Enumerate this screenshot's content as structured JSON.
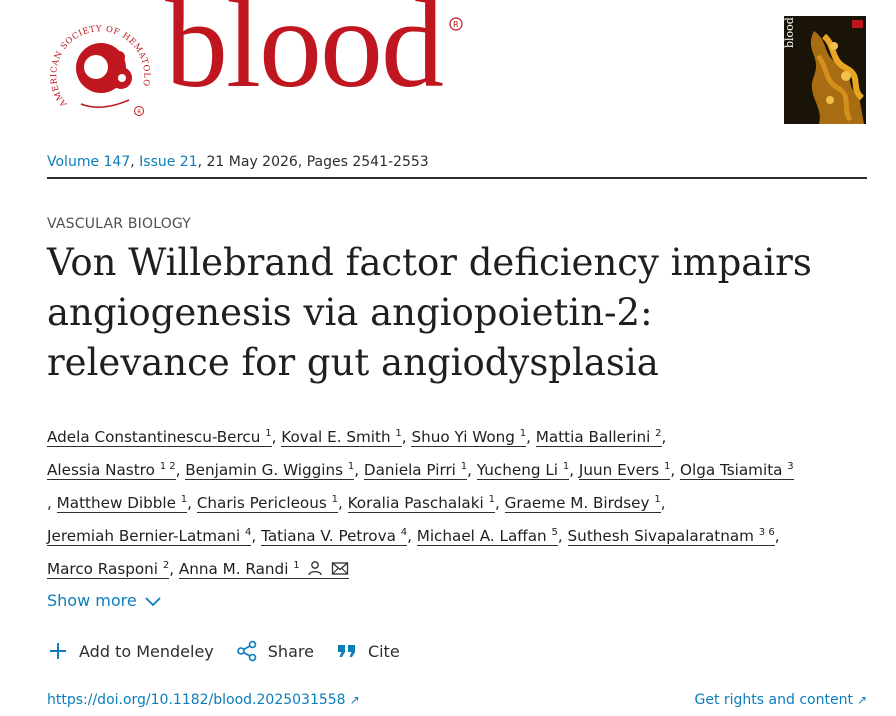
{
  "brand": {
    "journal_name": "blood",
    "seal_text": "AMERICAN SOCIETY OF HEMATOLOGY",
    "cover_text": "blood",
    "brand_color": "#c0161f",
    "link_color": "#0c7dbb"
  },
  "issue": {
    "volume": "Volume 147",
    "issue": "Issue 21",
    "date_pages": ", 21 May 2026, Pages 2541-2553"
  },
  "article": {
    "section": "VASCULAR BIOLOGY",
    "title": "Von Willebrand factor deficiency impairs angiogenesis via angiopoietin-2: relevance for gut angiodysplasia"
  },
  "authors": [
    {
      "name": "Adela Constantinescu-Bercu",
      "aff": "1"
    },
    {
      "name": "Koval E. Smith",
      "aff": "1"
    },
    {
      "name": "Shuo Yi Wong",
      "aff": "1"
    },
    {
      "name": "Mattia Ballerini",
      "aff": "2"
    },
    {
      "name": "Alessia Nastro",
      "aff": "1 2"
    },
    {
      "name": "Benjamin G. Wiggins",
      "aff": "1"
    },
    {
      "name": "Daniela Pirri",
      "aff": "1"
    },
    {
      "name": "Yucheng Li",
      "aff": "1"
    },
    {
      "name": "Juun Evers",
      "aff": "1"
    },
    {
      "name": "Olga Tsiamita",
      "aff": "3"
    },
    {
      "name": "Matthew Dibble",
      "aff": "1"
    },
    {
      "name": "Charis Pericleous",
      "aff": "1"
    },
    {
      "name": "Koralia Paschalaki",
      "aff": "1"
    },
    {
      "name": "Graeme M. Birdsey",
      "aff": "1"
    },
    {
      "name": "Jeremiah Bernier-Latmani",
      "aff": "4"
    },
    {
      "name": "Tatiana V. Petrova",
      "aff": "4"
    },
    {
      "name": "Michael A. Laffan",
      "aff": "5"
    },
    {
      "name": "Suthesh Sivapalaratnam",
      "aff": "3 6"
    },
    {
      "name": "Marco Rasponi",
      "aff": "2"
    },
    {
      "name": "Anna M. Randi",
      "aff": "1"
    }
  ],
  "corresponding_icons": [
    "person-icon",
    "envelope-icon"
  ],
  "show_more": {
    "label": "Show more",
    "icon": "chevron-down-icon"
  },
  "actions": [
    {
      "label": "Add to Mendeley",
      "icon": "plus-icon"
    },
    {
      "label": "Share",
      "icon": "share-icon"
    },
    {
      "label": "Cite",
      "icon": "quote-icon"
    }
  ],
  "links": {
    "doi": "https://doi.org/10.1182/blood.2025031558",
    "rights": "Get rights and content",
    "arrow": "↗"
  }
}
